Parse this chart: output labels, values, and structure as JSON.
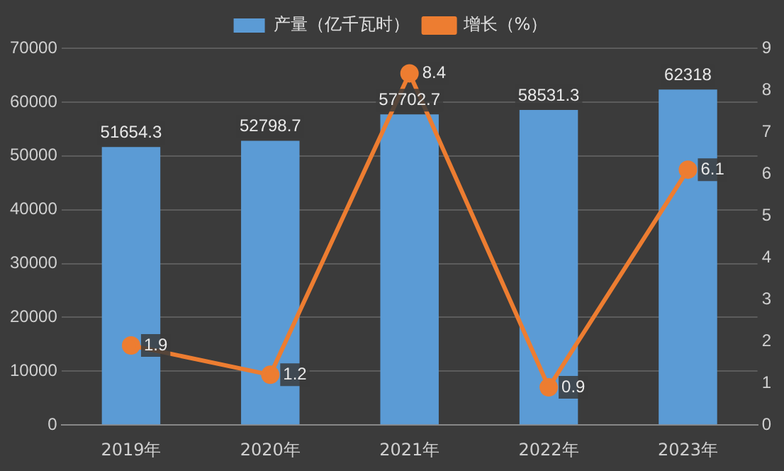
{
  "chart_data": {
    "type": "bar",
    "categories": [
      "2019年",
      "2020年",
      "2021年",
      "2022年",
      "2023年"
    ],
    "series": [
      {
        "name": "产量（亿千瓦时）",
        "type": "bar",
        "color": "#5b9bd5",
        "values": [
          51654.3,
          52798.7,
          57702.7,
          58531.3,
          62318
        ]
      },
      {
        "name": "增长（%）",
        "type": "line",
        "axis": "y2",
        "color": "#ed7d31",
        "values": [
          1.9,
          1.2,
          8.4,
          0.9,
          6.1
        ]
      }
    ],
    "ylim": [
      0,
      70000
    ],
    "yticks": [
      0,
      10000,
      20000,
      30000,
      40000,
      50000,
      60000,
      70000
    ],
    "y2lim": [
      0,
      9
    ],
    "y2ticks": [
      0,
      1,
      2,
      3,
      4,
      5,
      6,
      7,
      8,
      9
    ],
    "grid": "y",
    "legend": "top",
    "marker": "circle",
    "line_style": "solid",
    "data_labels": true
  }
}
